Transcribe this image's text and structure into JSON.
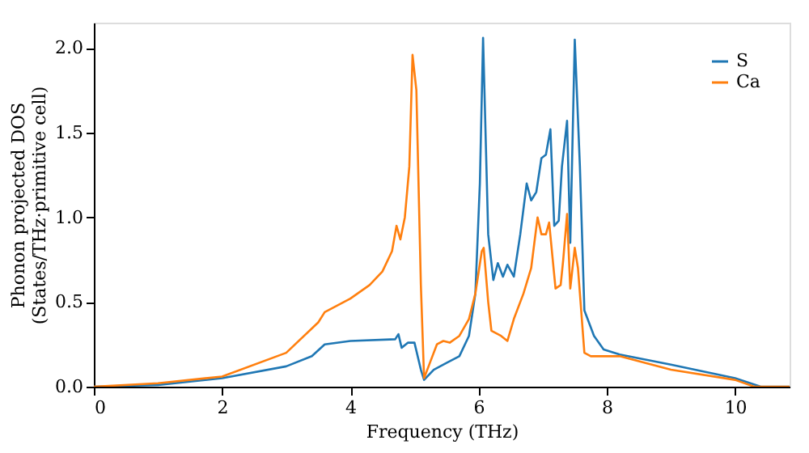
{
  "chart_data": {
    "type": "line",
    "xlabel": "Frequency (THz)",
    "ylabel": "Phonon projected DOS\n(States/THz·primitive cell)",
    "xlim": [
      0,
      10.85
    ],
    "ylim": [
      0,
      2.15
    ],
    "xticks": [
      0,
      2,
      4,
      6,
      8,
      10
    ],
    "yticks": [
      {
        "value": 0,
        "label": "0.0"
      },
      {
        "value": 0.5,
        "label": "0.5"
      },
      {
        "value": 1.0,
        "label": "1.0"
      },
      {
        "value": 1.5,
        "label": "1.5"
      },
      {
        "value": 2.0,
        "label": "2.0"
      }
    ],
    "grid": false,
    "legend": "top right",
    "line_style": "solid",
    "marker": "none",
    "series": [
      {
        "name": "S",
        "color": "#1f77b4",
        "x": [
          0,
          1,
          2,
          3,
          3.4,
          3.6,
          4,
          4.7,
          4.75,
          4.8,
          4.9,
          5.0,
          5.1,
          5.15,
          5.3,
          5.5,
          5.7,
          5.85,
          5.95,
          6.02,
          6.07,
          6.15,
          6.23,
          6.3,
          6.38,
          6.45,
          6.55,
          6.65,
          6.75,
          6.82,
          6.9,
          6.98,
          7.05,
          7.12,
          7.18,
          7.25,
          7.3,
          7.38,
          7.43,
          7.5,
          7.58,
          7.65,
          7.8,
          7.95,
          8.2,
          9,
          10,
          10.4,
          10.85
        ],
        "values": [
          0,
          0.01,
          0.05,
          0.12,
          0.18,
          0.25,
          0.27,
          0.28,
          0.31,
          0.23,
          0.26,
          0.26,
          0.1,
          0.04,
          0.1,
          0.14,
          0.18,
          0.3,
          0.55,
          1.2,
          2.06,
          0.9,
          0.63,
          0.73,
          0.65,
          0.72,
          0.65,
          0.9,
          1.2,
          1.1,
          1.15,
          1.35,
          1.37,
          1.52,
          0.95,
          0.98,
          1.3,
          1.57,
          0.85,
          2.05,
          1.3,
          0.45,
          0.3,
          0.22,
          0.19,
          0.13,
          0.05,
          0.0,
          0.0
        ]
      },
      {
        "name": "Ca",
        "color": "#ff7f0e",
        "x": [
          0,
          1,
          2,
          3,
          3.5,
          3.6,
          4,
          4.3,
          4.5,
          4.65,
          4.72,
          4.78,
          4.85,
          4.92,
          4.97,
          5.03,
          5.1,
          5.15,
          5.25,
          5.35,
          5.45,
          5.55,
          5.7,
          5.85,
          5.95,
          6.05,
          6.08,
          6.15,
          6.2,
          6.35,
          6.45,
          6.55,
          6.7,
          6.82,
          6.92,
          6.98,
          7.05,
          7.1,
          7.2,
          7.28,
          7.32,
          7.38,
          7.43,
          7.5,
          7.55,
          7.65,
          7.75,
          8,
          8.2,
          9,
          10,
          10.3,
          10.85
        ],
        "values": [
          0,
          0.02,
          0.06,
          0.2,
          0.38,
          0.44,
          0.52,
          0.6,
          0.68,
          0.8,
          0.95,
          0.87,
          1.0,
          1.3,
          1.96,
          1.75,
          0.6,
          0.05,
          0.15,
          0.25,
          0.27,
          0.26,
          0.3,
          0.4,
          0.55,
          0.8,
          0.82,
          0.5,
          0.33,
          0.3,
          0.27,
          0.4,
          0.55,
          0.7,
          1.0,
          0.9,
          0.9,
          0.97,
          0.58,
          0.6,
          0.75,
          1.02,
          0.58,
          0.82,
          0.7,
          0.2,
          0.18,
          0.18,
          0.18,
          0.1,
          0.04,
          0.0,
          0.0
        ]
      }
    ]
  }
}
